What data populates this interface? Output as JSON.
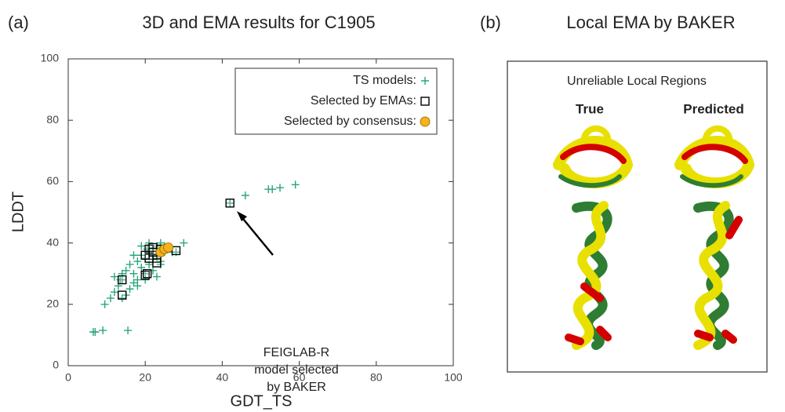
{
  "chart_data": {
    "type": "scatter",
    "panel_label": "(a)",
    "title": "3D and EMA results for C1905",
    "x_label": "GDT_TS",
    "y_label": "LDDT",
    "xlim": [
      0,
      100
    ],
    "ylim": [
      0,
      100
    ],
    "xticks": [
      0,
      20,
      40,
      60,
      80,
      100
    ],
    "yticks": [
      0,
      20,
      40,
      60,
      80,
      100
    ],
    "legend": "upper right",
    "series": [
      {
        "name": "TS models:",
        "color": "#2aa57a",
        "marker": "plus",
        "x": [
          6.5,
          7,
          9,
          15.5,
          9.5,
          11,
          12,
          13,
          13.5,
          14,
          15,
          16,
          17,
          17,
          18,
          18,
          19,
          19,
          20,
          20,
          20.5,
          21,
          21,
          22,
          22,
          23,
          23,
          24,
          24,
          25,
          25,
          26,
          27,
          28,
          30,
          16,
          15,
          14,
          18,
          20,
          22,
          24,
          21,
          12,
          14,
          17,
          19,
          23,
          24,
          42,
          46,
          52,
          53,
          55,
          59
        ],
        "values": [
          11,
          11,
          11.5,
          11.5,
          20,
          22,
          24,
          26,
          28,
          30,
          31,
          33,
          30,
          27,
          28,
          34,
          32,
          36,
          30,
          35,
          38,
          37,
          33,
          38,
          36,
          39,
          35,
          38,
          40,
          37,
          39,
          38,
          37,
          37,
          40,
          25,
          23,
          22,
          26,
          28,
          31,
          33,
          40,
          29,
          28,
          36,
          39,
          29,
          34,
          53,
          55.5,
          57.5,
          57.5,
          58,
          59
        ]
      },
      {
        "name": "Selected by EMAs:",
        "color": "#000000",
        "marker": "square",
        "x": [
          14,
          14,
          20,
          20.5,
          21,
          22,
          22,
          23,
          23,
          21,
          28,
          42,
          24,
          22,
          20
        ],
        "values": [
          28,
          23,
          29.5,
          30,
          38,
          38.5,
          36,
          35,
          33.5,
          35,
          37.5,
          53,
          38,
          37,
          36
        ]
      },
      {
        "name": "Selected by consensus:",
        "color": "#f5b21b",
        "marker": "circle",
        "x": [
          24,
          25,
          26
        ],
        "values": [
          37,
          38,
          38.5
        ]
      }
    ],
    "annotation": {
      "lines": [
        "FEIGLAB-R",
        "model selected",
        "by BAKER"
      ]
    }
  },
  "panel_b": {
    "label": "(b)",
    "title": "Local EMA by BAKER",
    "subtitle": "Unreliable Local Regions",
    "true_label": "True",
    "predicted_label": "Predicted"
  }
}
